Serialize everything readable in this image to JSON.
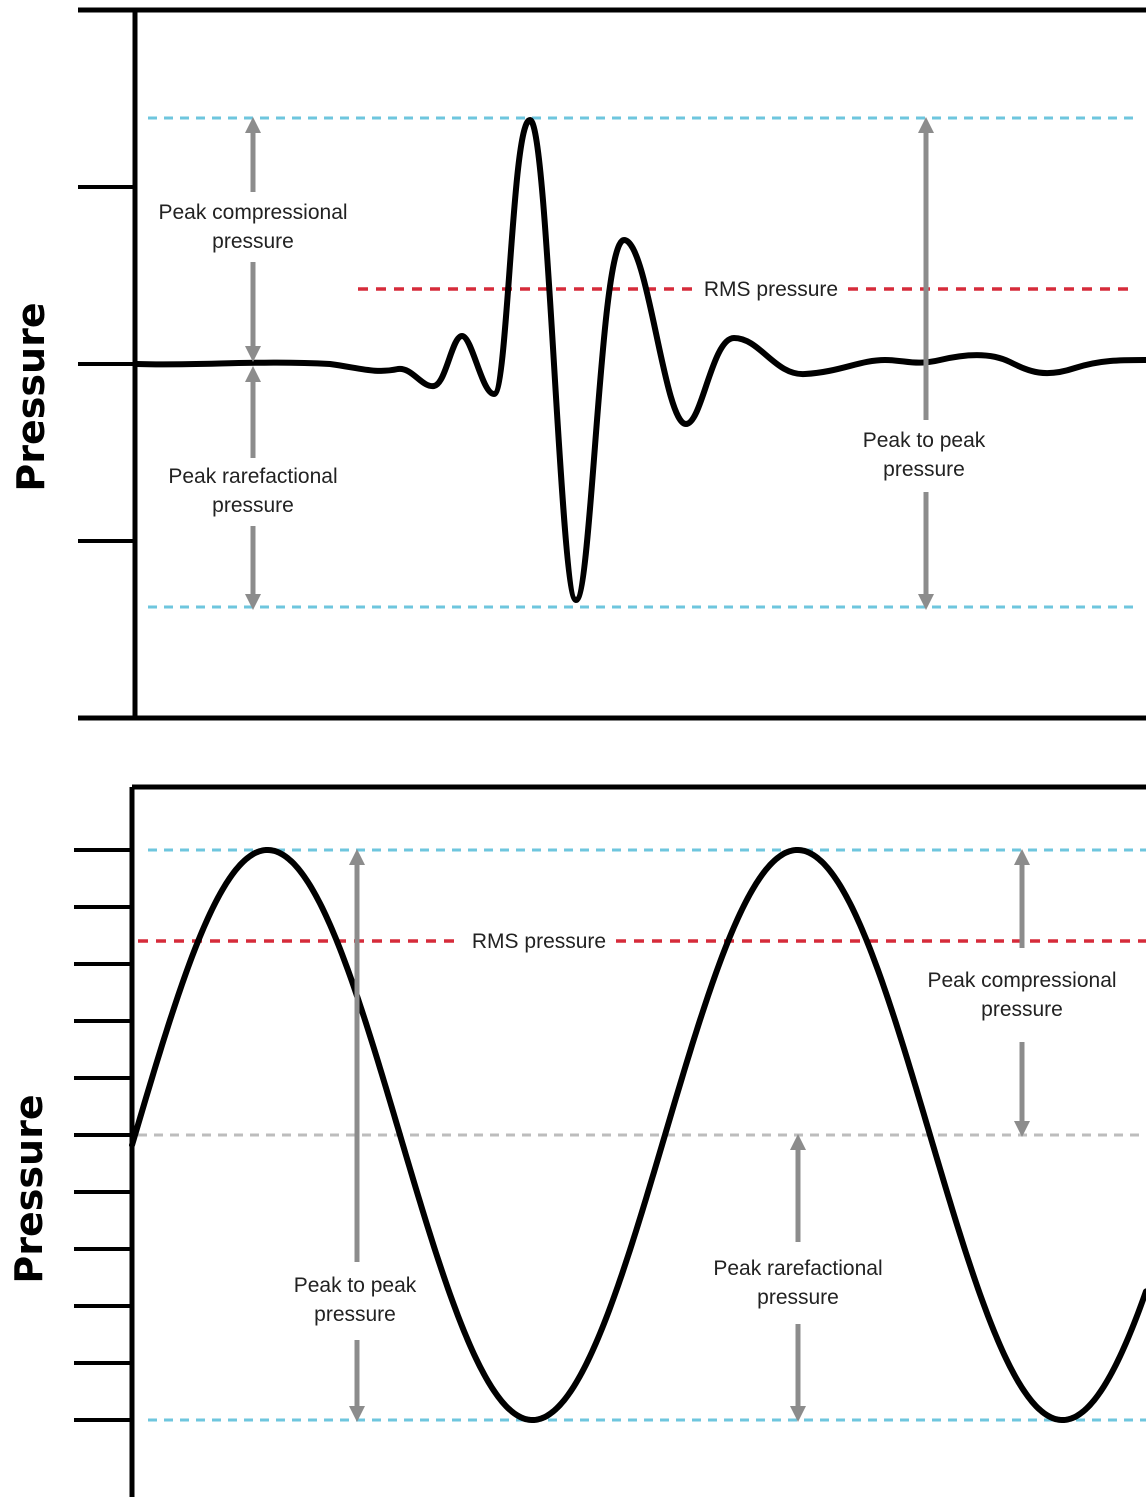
{
  "colors": {
    "waveform": "#000000",
    "peak_reference_line": "#6ec6de",
    "rms_line": "#d62b3a",
    "baseline_line": "#bdbdbd",
    "arrow": "#8c8c8c",
    "frame": "#000000"
  },
  "panels": [
    {
      "id": "pulse",
      "y_axis_label": "Pressure",
      "waveform": "transient acoustic pulse",
      "labels": {
        "peak_compressional": [
          "Peak compressional",
          "pressure"
        ],
        "peak_rarefactional": [
          "Peak rarefactional",
          "pressure"
        ],
        "peak_to_peak": [
          "Peak to peak",
          "pressure"
        ],
        "rms": "RMS pressure"
      }
    },
    {
      "id": "sine",
      "y_axis_label": "Pressure",
      "waveform": "continuous sine wave",
      "labels": {
        "peak_compressional": [
          "Peak compressional",
          "pressure"
        ],
        "peak_rarefactional": [
          "Peak rarefactional",
          "pressure"
        ],
        "peak_to_peak": [
          "Peak to peak",
          "pressure"
        ],
        "rms": "RMS pressure"
      }
    }
  ]
}
